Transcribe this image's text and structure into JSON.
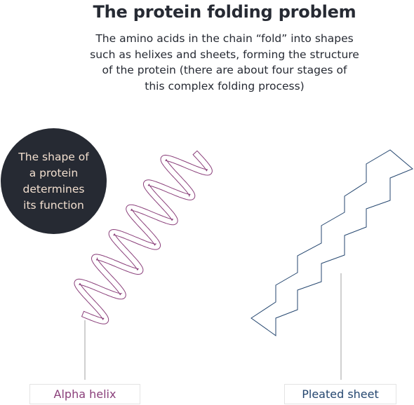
{
  "header": {
    "title": "The protein folding problem",
    "subtitle_lines": [
      "The amino acids in the chain “fold” into shapes",
      "such as helixes and sheets, forming the structure",
      "of the protein (there are about four stages of",
      "this complex folding process)"
    ]
  },
  "callout": {
    "lines": [
      "The shape of",
      "a protein",
      "determines",
      "its function"
    ]
  },
  "structures": {
    "alpha_helix": {
      "label": "Alpha helix",
      "color": "#8a3f7a"
    },
    "pleated_sheet": {
      "label": "Pleated sheet",
      "color": "#24466f"
    }
  },
  "colors": {
    "text": "#262a33",
    "callout_bg": "#262a33",
    "callout_text": "#f2dfcf",
    "leader_line": "#a0a0a0"
  }
}
